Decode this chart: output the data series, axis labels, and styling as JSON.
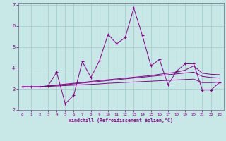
{
  "xlabel": "Windchill (Refroidissement éolien,°C)",
  "xlim": [
    -0.5,
    23.5
  ],
  "ylim": [
    2,
    7.1
  ],
  "xticks": [
    0,
    1,
    2,
    3,
    4,
    5,
    6,
    7,
    8,
    9,
    10,
    11,
    12,
    13,
    14,
    15,
    16,
    17,
    18,
    19,
    20,
    21,
    22,
    23
  ],
  "yticks": [
    2,
    3,
    4,
    5,
    6,
    7
  ],
  "bg_color": "#c8e8e8",
  "grid_color": "#a0c8c8",
  "line_color": "#880088",
  "x": [
    0,
    1,
    2,
    3,
    4,
    5,
    6,
    7,
    8,
    9,
    10,
    11,
    12,
    13,
    14,
    15,
    16,
    17,
    18,
    19,
    20,
    21,
    22,
    23
  ],
  "y_main": [
    3.1,
    3.1,
    3.1,
    3.15,
    3.8,
    2.3,
    2.7,
    4.3,
    3.55,
    4.35,
    5.6,
    5.15,
    5.45,
    6.85,
    5.55,
    4.1,
    4.4,
    3.2,
    3.85,
    4.2,
    4.2,
    2.95,
    2.95,
    3.3
  ],
  "y_line1": [
    3.1,
    3.1,
    3.1,
    3.12,
    3.14,
    3.16,
    3.18,
    3.2,
    3.22,
    3.24,
    3.27,
    3.29,
    3.31,
    3.33,
    3.35,
    3.37,
    3.39,
    3.41,
    3.43,
    3.45,
    3.47,
    3.3,
    3.3,
    3.32
  ],
  "y_line2": [
    3.1,
    3.1,
    3.1,
    3.13,
    3.17,
    3.2,
    3.24,
    3.28,
    3.32,
    3.36,
    3.4,
    3.44,
    3.48,
    3.52,
    3.56,
    3.6,
    3.64,
    3.68,
    3.72,
    3.76,
    3.8,
    3.6,
    3.55,
    3.52
  ],
  "y_line3": [
    3.1,
    3.1,
    3.1,
    3.14,
    3.19,
    3.23,
    3.27,
    3.31,
    3.36,
    3.4,
    3.44,
    3.48,
    3.52,
    3.56,
    3.6,
    3.64,
    3.7,
    3.75,
    3.8,
    3.9,
    4.1,
    3.75,
    3.7,
    3.68
  ]
}
